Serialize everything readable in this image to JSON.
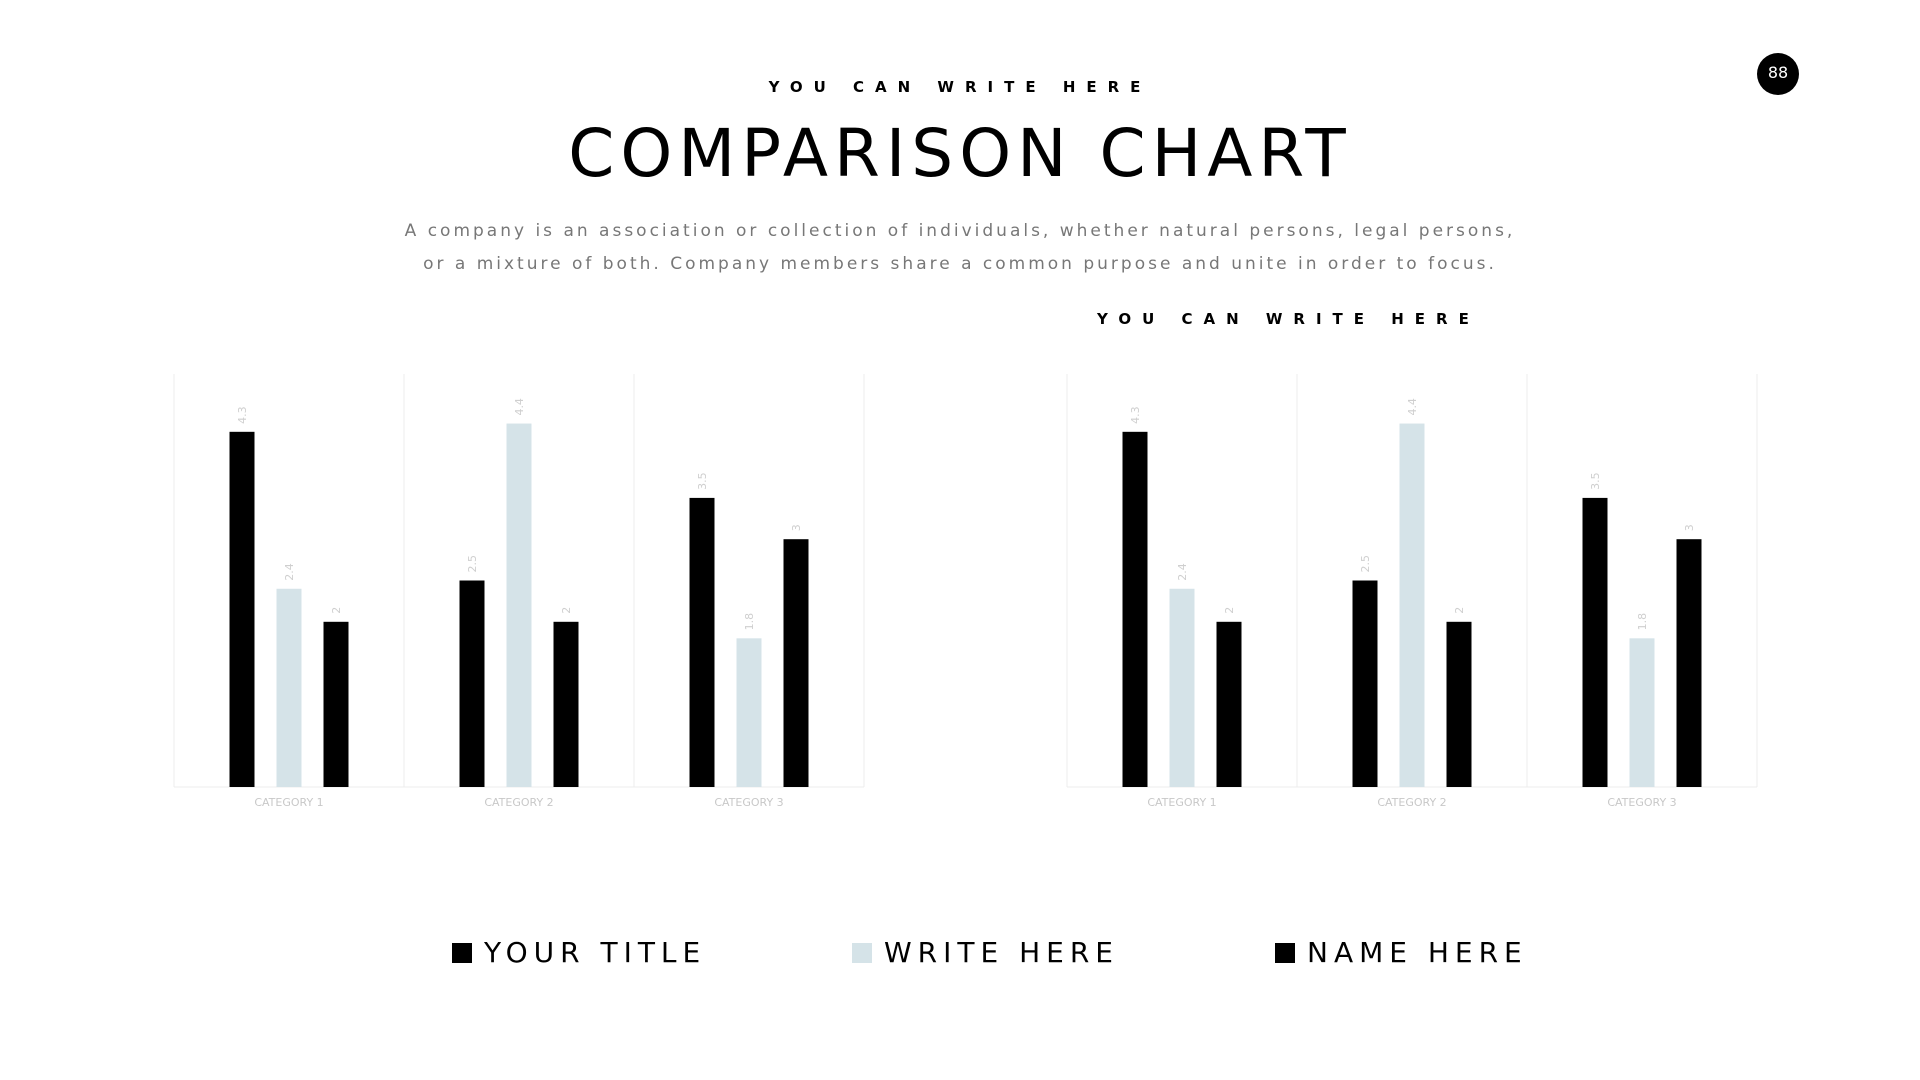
{
  "header": {
    "kicker": "YOU CAN WRITE HERE",
    "title": "COMPARISON CHART",
    "description_lines": [
      "A company is an association or collection of individuals, whether natural persons, legal persons,",
      "or a mixture of both. Company members share a common purpose and unite in order to focus."
    ],
    "overlay_kicker": "YOU CAN WRITE HERE"
  },
  "page_number": "88",
  "legend": [
    {
      "label": "YOUR TITLE",
      "color": "#000000"
    },
    {
      "label": "WRITE HERE",
      "color": "#d5e3e8"
    },
    {
      "label": "NAME HERE",
      "color": "#000000"
    }
  ],
  "chart_data": [
    {
      "type": "bar",
      "categories": [
        "CATEGORY 1",
        "CATEGORY 2",
        "CATEGORY 3"
      ],
      "series": [
        {
          "values": [
            4.3,
            2.5,
            3.5
          ],
          "color": "#000000"
        },
        {
          "values": [
            2.4,
            4.4,
            1.8
          ],
          "color": "#d5e3e8"
        },
        {
          "values": [
            2,
            2,
            3
          ],
          "color": "#000000"
        }
      ],
      "ylim": [
        0,
        5
      ],
      "grid": "vertical category separators",
      "data_labels": true
    },
    {
      "type": "bar",
      "categories": [
        "CATEGORY 1",
        "CATEGORY 2",
        "CATEGORY 3"
      ],
      "series": [
        {
          "values": [
            4.3,
            2.5,
            3.5
          ],
          "color": "#000000"
        },
        {
          "values": [
            2.4,
            4.4,
            1.8
          ],
          "color": "#d5e3e8"
        },
        {
          "values": [
            2,
            2,
            3
          ],
          "color": "#000000"
        }
      ],
      "ylim": [
        0,
        5
      ],
      "grid": "vertical category separators",
      "data_labels": true
    }
  ]
}
